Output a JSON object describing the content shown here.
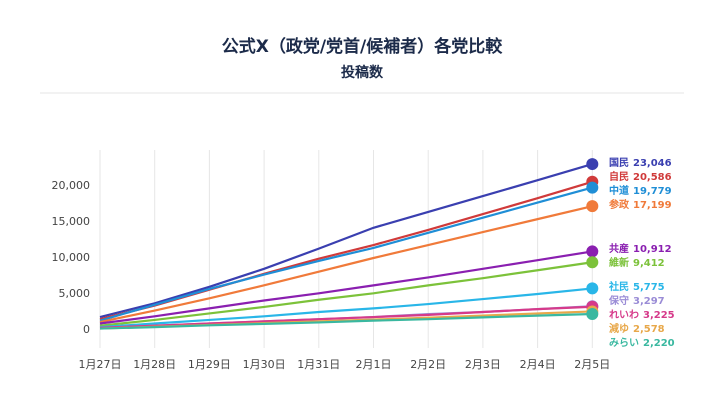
{
  "chart_data": {
    "type": "line",
    "title": "公式X（政党/党首/候補者）各党比較",
    "subtitle": "投稿数",
    "categories": [
      "1月27日",
      "1月28日",
      "1月29日",
      "1月30日",
      "1月31日",
      "2月1日",
      "2月2日",
      "2月3日",
      "2月4日",
      "2月5日"
    ],
    "ylim": [
      -2500,
      25000
    ],
    "yticks": [
      0,
      {
        "value": 5000,
        "label": "5,000"
      },
      {
        "value": 10000,
        "label": "10,000"
      },
      {
        "value": 15000,
        "label": "15,000"
      },
      {
        "value": 20000,
        "label": "20,000"
      }
    ],
    "grid": "x",
    "series": [
      {
        "name": "国民",
        "color": "#3a3fb0",
        "values": [
          1800,
          3700,
          6000,
          8500,
          11300,
          14200,
          16400,
          18600,
          20800,
          23046
        ],
        "value_labels": [
          null,
          null,
          null,
          null,
          null,
          null,
          null,
          null,
          null,
          "23,046"
        ]
      },
      {
        "name": "自民",
        "color": "#d03a3a",
        "values": [
          1500,
          3400,
          5600,
          7800,
          9900,
          11800,
          13900,
          16100,
          18300,
          20586
        ],
        "value_labels": [
          null,
          null,
          null,
          null,
          null,
          null,
          null,
          null,
          null,
          "20,586"
        ]
      },
      {
        "name": "中道",
        "color": "#1f8ed6",
        "values": [
          1300,
          3500,
          5700,
          7700,
          9600,
          11400,
          13500,
          15600,
          17700,
          19779
        ],
        "value_labels": [
          null,
          null,
          null,
          null,
          null,
          null,
          null,
          null,
          null,
          "19,779"
        ]
      },
      {
        "name": "参政",
        "color": "#f07a3a",
        "values": [
          1100,
          2700,
          4400,
          6200,
          8100,
          10000,
          11800,
          13600,
          15400,
          17199
        ],
        "value_labels": [
          null,
          null,
          null,
          null,
          null,
          null,
          null,
          null,
          null,
          "17,199"
        ]
      },
      {
        "name": "共産",
        "color": "#8a1fb0",
        "values": [
          900,
          1900,
          3000,
          4100,
          5100,
          6200,
          7300,
          8500,
          9700,
          10912
        ],
        "value_labels": [
          null,
          null,
          null,
          null,
          null,
          null,
          null,
          null,
          null,
          "10,912"
        ]
      },
      {
        "name": "維新",
        "color": "#7cc23a",
        "values": [
          600,
          1400,
          2300,
          3200,
          4200,
          5100,
          6200,
          7200,
          8300,
          9412
        ],
        "value_labels": [
          null,
          null,
          null,
          null,
          null,
          null,
          null,
          null,
          null,
          "9,412"
        ]
      },
      {
        "name": "社民",
        "color": "#29b6e8",
        "values": [
          400,
          900,
          1400,
          1900,
          2500,
          3000,
          3600,
          4300,
          5000,
          5775
        ],
        "value_labels": [
          null,
          null,
          null,
          null,
          null,
          null,
          null,
          null,
          null,
          "5,775"
        ]
      },
      {
        "name": "保守",
        "color": "#9a8cd6",
        "values": [
          300,
          600,
          900,
          1200,
          1500,
          1800,
          2200,
          2500,
          2900,
          3297
        ],
        "value_labels": [
          null,
          null,
          null,
          null,
          null,
          null,
          null,
          null,
          null,
          "3,297"
        ]
      },
      {
        "name": "れいわ",
        "color": "#d63a8a",
        "values": [
          300,
          600,
          900,
          1200,
          1500,
          1800,
          2100,
          2500,
          2900,
          3225
        ],
        "value_labels": [
          null,
          null,
          null,
          null,
          null,
          null,
          null,
          null,
          null,
          "3,225"
        ]
      },
      {
        "name": "減ゆ",
        "color": "#e8a84a",
        "values": [
          200,
          450,
          700,
          950,
          1200,
          1450,
          1700,
          2000,
          2300,
          2578
        ],
        "value_labels": [
          null,
          null,
          null,
          null,
          null,
          null,
          null,
          null,
          null,
          "2,578"
        ]
      },
      {
        "name": "みらい",
        "color": "#3ab8a0",
        "values": [
          200,
          400,
          650,
          850,
          1050,
          1300,
          1500,
          1750,
          2000,
          2220
        ],
        "value_labels": [
          null,
          null,
          null,
          null,
          null,
          null,
          null,
          null,
          null,
          "2,220"
        ]
      }
    ]
  }
}
